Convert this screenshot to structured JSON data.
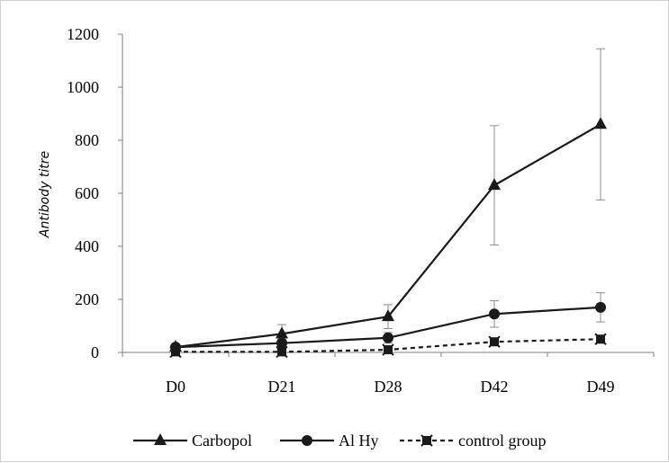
{
  "chart_data": {
    "type": "line",
    "title": "",
    "xlabel": "",
    "ylabel": "Antibody titre",
    "categories": [
      "D0",
      "D21",
      "D28",
      "D42",
      "D49"
    ],
    "y_ticks": [
      "0",
      "200",
      "400",
      "600",
      "800",
      "1000",
      "1200"
    ],
    "ylim": [
      0,
      1200
    ],
    "grid": false,
    "legend_position": "bottom",
    "series": [
      {
        "name": "Carbopol",
        "marker": "triangle",
        "dash": "solid",
        "color": "#1a1a1a",
        "values": [
          20,
          70,
          135,
          630,
          860
        ],
        "errors": [
          5,
          35,
          45,
          225,
          285
        ]
      },
      {
        "name": "Al Hy",
        "marker": "circle",
        "dash": "solid",
        "color": "#1a1a1a",
        "values": [
          20,
          35,
          55,
          145,
          170
        ],
        "errors": [
          5,
          15,
          20,
          50,
          55
        ]
      },
      {
        "name": "control group",
        "marker": "x-square",
        "dash": "dashed",
        "color": "#1a1a1a",
        "values": [
          2,
          2,
          10,
          40,
          50
        ],
        "errors": [
          2,
          2,
          5,
          12,
          15
        ]
      }
    ]
  }
}
